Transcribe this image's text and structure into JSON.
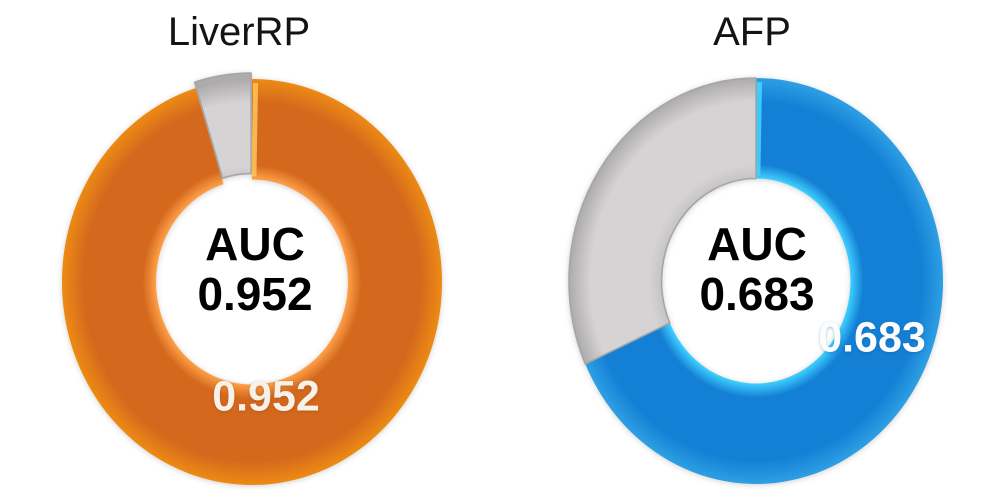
{
  "page": {
    "background": "#FFFFFF"
  },
  "chart_data": [
    {
      "type": "donut",
      "title": "LiverRP",
      "center_label": {
        "line1": "AUC",
        "line2": "0.952"
      },
      "start_angle_deg": 0,
      "direction": "clockwise",
      "legend": "none",
      "labels_position": "inside",
      "seam_color": "#FFC65A",
      "segments": [
        {
          "name": "liverrp-auc",
          "value": 0.952,
          "label": "0.952",
          "color": "#D4691E",
          "rim_inner": "#FFA047",
          "rim_outer": "#ED8A13",
          "label_color": "#F6F1E9"
        },
        {
          "name": "liverrp-remainder",
          "value": 0.048,
          "color": "#D5D3D3",
          "rim_inner": "#C6C4C4",
          "rim_outer": "#ADABAB",
          "border": "#A6A6A6"
        }
      ]
    },
    {
      "type": "donut",
      "title": "AFP",
      "center_label": {
        "line1": "AUC",
        "line2": "0.683"
      },
      "start_angle_deg": 0,
      "direction": "clockwise",
      "legend": "none",
      "labels_position": "inside",
      "seam_color": "#45D8FF",
      "segments": [
        {
          "name": "afp-auc",
          "value": 0.683,
          "label": "0.683",
          "color": "#1480D5",
          "rim_inner": "#3FD0FF",
          "rim_outer": "#2E9FE4",
          "label_color": "#FDFDFF"
        },
        {
          "name": "afp-remainder",
          "value": 0.317,
          "color": "#D5D3D3",
          "rim_inner": "#C6C4C4",
          "rim_outer": "#ADABAB",
          "border": "#A6A6A6"
        }
      ]
    }
  ]
}
